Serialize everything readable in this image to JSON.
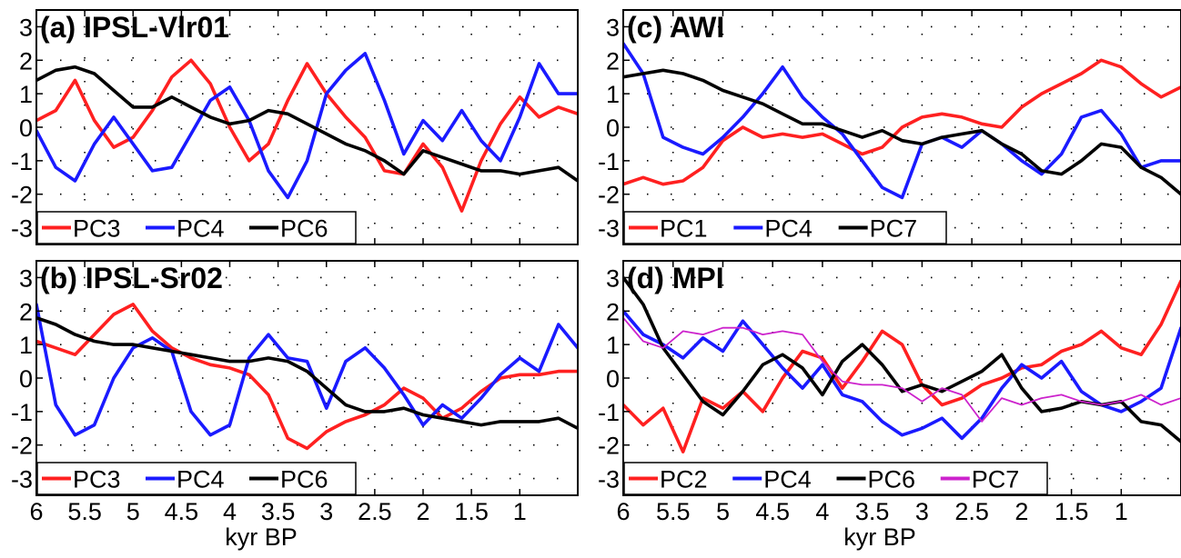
{
  "figure": {
    "xlabel": "kyr BP",
    "x_ticks": [
      "6",
      "5.5",
      "5",
      "4.5",
      "4",
      "3.5",
      "3",
      "2.5",
      "2",
      "1.5",
      "1"
    ],
    "y_ticks": [
      "3",
      "2",
      "1",
      "0",
      "-1",
      "-2",
      "-3"
    ]
  },
  "chart_data": [
    {
      "type": "line",
      "title": "(a) IPSL-Vlr01",
      "xlabel": "",
      "ylabel": "",
      "xlim": [
        6,
        0.4
      ],
      "ylim": [
        -3.5,
        3.5
      ],
      "x_reversed": true,
      "grid": true,
      "legend": "bottom-left",
      "x": [
        6.0,
        5.8,
        5.6,
        5.4,
        5.2,
        5.0,
        4.8,
        4.6,
        4.4,
        4.2,
        4.0,
        3.8,
        3.6,
        3.4,
        3.2,
        3.0,
        2.8,
        2.6,
        2.4,
        2.2,
        2.0,
        1.8,
        1.6,
        1.4,
        1.2,
        1.0,
        0.8,
        0.6,
        0.4
      ],
      "series": [
        {
          "name": "PC3",
          "color": "#ff2020",
          "values": [
            0.2,
            0.5,
            1.4,
            0.2,
            -0.6,
            -0.3,
            0.5,
            1.5,
            2.0,
            1.3,
            0.0,
            -1.0,
            -0.5,
            0.8,
            1.9,
            1.0,
            0.3,
            -0.3,
            -1.3,
            -1.4,
            -0.5,
            -1.2,
            -2.5,
            -1.0,
            0.1,
            0.9,
            0.3,
            0.6,
            0.4
          ]
        },
        {
          "name": "PC4",
          "color": "#1a1aff",
          "values": [
            -0.1,
            -1.2,
            -1.6,
            -0.5,
            0.3,
            -0.5,
            -1.3,
            -1.2,
            -0.2,
            0.8,
            1.2,
            0.2,
            -1.3,
            -2.1,
            -1.0,
            1.0,
            1.7,
            2.2,
            0.8,
            -0.8,
            0.2,
            -0.4,
            0.5,
            -0.4,
            -1.0,
            0.3,
            1.9,
            1.0,
            1.0
          ]
        },
        {
          "name": "PC6",
          "color": "#000000",
          "values": [
            1.4,
            1.7,
            1.8,
            1.6,
            1.1,
            0.6,
            0.6,
            0.9,
            0.6,
            0.3,
            0.1,
            0.2,
            0.5,
            0.4,
            0.1,
            -0.2,
            -0.5,
            -0.7,
            -1.0,
            -1.4,
            -0.7,
            -0.9,
            -1.1,
            -1.3,
            -1.3,
            -1.4,
            -1.3,
            -1.2,
            -1.6
          ]
        }
      ]
    },
    {
      "type": "line",
      "title": "(b) IPSL-Sr02",
      "xlabel": "kyr BP",
      "ylabel": "",
      "xlim": [
        6,
        0.4
      ],
      "ylim": [
        -3.5,
        3.5
      ],
      "x_reversed": true,
      "grid": true,
      "legend": "bottom-left",
      "x": [
        6.0,
        5.8,
        5.6,
        5.4,
        5.2,
        5.0,
        4.8,
        4.6,
        4.4,
        4.2,
        4.0,
        3.8,
        3.6,
        3.4,
        3.2,
        3.0,
        2.8,
        2.6,
        2.4,
        2.2,
        2.0,
        1.8,
        1.6,
        1.4,
        1.2,
        1.0,
        0.8,
        0.6,
        0.4
      ],
      "series": [
        {
          "name": "PC3",
          "color": "#ff2020",
          "values": [
            1.1,
            0.9,
            0.7,
            1.3,
            1.9,
            2.2,
            1.4,
            0.9,
            0.6,
            0.4,
            0.3,
            0.1,
            -0.5,
            -1.8,
            -2.1,
            -1.6,
            -1.3,
            -1.1,
            -0.8,
            -0.3,
            -0.6,
            -1.2,
            -0.9,
            -0.4,
            0.0,
            0.1,
            0.1,
            0.2,
            0.2
          ]
        },
        {
          "name": "PC4",
          "color": "#1a1aff",
          "values": [
            2.2,
            -0.8,
            -1.7,
            -1.4,
            0.0,
            0.9,
            1.2,
            0.8,
            -1.0,
            -1.7,
            -1.4,
            0.6,
            1.3,
            0.6,
            0.5,
            -0.9,
            0.5,
            0.9,
            0.3,
            -0.5,
            -1.4,
            -0.8,
            -1.2,
            -0.6,
            0.1,
            0.6,
            0.2,
            1.6,
            0.9
          ]
        },
        {
          "name": "PC6",
          "color": "#000000",
          "values": [
            1.8,
            1.6,
            1.3,
            1.1,
            1.0,
            1.0,
            0.9,
            0.8,
            0.7,
            0.6,
            0.5,
            0.5,
            0.6,
            0.5,
            0.2,
            -0.3,
            -0.8,
            -1.0,
            -1.0,
            -0.9,
            -1.1,
            -1.2,
            -1.3,
            -1.4,
            -1.3,
            -1.3,
            -1.3,
            -1.2,
            -1.5
          ]
        }
      ]
    },
    {
      "type": "line",
      "title": "(c) AWI",
      "xlabel": "",
      "ylabel": "",
      "xlim": [
        6,
        0.4
      ],
      "ylim": [
        -3.5,
        3.5
      ],
      "x_reversed": true,
      "grid": true,
      "legend": "bottom-left",
      "x": [
        6.0,
        5.8,
        5.6,
        5.4,
        5.2,
        5.0,
        4.8,
        4.6,
        4.4,
        4.2,
        4.0,
        3.8,
        3.6,
        3.4,
        3.2,
        3.0,
        2.8,
        2.6,
        2.4,
        2.2,
        2.0,
        1.8,
        1.6,
        1.4,
        1.2,
        1.0,
        0.8,
        0.6,
        0.4
      ],
      "series": [
        {
          "name": "PC1",
          "color": "#ff2020",
          "values": [
            -1.7,
            -1.5,
            -1.7,
            -1.6,
            -1.2,
            -0.4,
            0.0,
            -0.3,
            -0.2,
            -0.3,
            -0.2,
            -0.5,
            -0.8,
            -0.6,
            0.0,
            0.3,
            0.4,
            0.3,
            0.1,
            0.0,
            0.6,
            1.0,
            1.3,
            1.6,
            2.0,
            1.8,
            1.3,
            0.9,
            1.2
          ]
        },
        {
          "name": "PC4",
          "color": "#1a1aff",
          "values": [
            2.5,
            1.6,
            -0.3,
            -0.6,
            -0.8,
            -0.3,
            0.3,
            1.0,
            1.8,
            0.9,
            0.3,
            -0.2,
            -1.0,
            -1.8,
            -2.1,
            -0.5,
            -0.3,
            -0.6,
            -0.1,
            -0.5,
            -1.0,
            -1.4,
            -0.8,
            0.3,
            0.5,
            -0.2,
            -1.2,
            -1.0,
            -1.0
          ]
        },
        {
          "name": "PC7",
          "color": "#000000",
          "values": [
            1.5,
            1.6,
            1.7,
            1.6,
            1.4,
            1.1,
            0.9,
            0.7,
            0.4,
            0.1,
            0.1,
            -0.1,
            -0.3,
            -0.1,
            -0.4,
            -0.5,
            -0.3,
            -0.2,
            -0.1,
            -0.5,
            -0.8,
            -1.3,
            -1.4,
            -1.0,
            -0.5,
            -0.6,
            -1.2,
            -1.5,
            -2.0
          ]
        }
      ]
    },
    {
      "type": "line",
      "title": "(d) MPI",
      "xlabel": "kyr BP",
      "ylabel": "",
      "xlim": [
        6,
        0.4
      ],
      "ylim": [
        -3.5,
        3.5
      ],
      "x_reversed": true,
      "grid": true,
      "legend": "bottom-left",
      "x": [
        6.0,
        5.8,
        5.6,
        5.4,
        5.2,
        5.0,
        4.8,
        4.6,
        4.4,
        4.2,
        4.0,
        3.8,
        3.6,
        3.4,
        3.2,
        3.0,
        2.8,
        2.6,
        2.4,
        2.2,
        2.0,
        1.8,
        1.6,
        1.4,
        1.2,
        1.0,
        0.8,
        0.6,
        0.4
      ],
      "series": [
        {
          "name": "PC2",
          "color": "#ff2020",
          "values": [
            -0.8,
            -1.4,
            -0.9,
            -2.2,
            -0.6,
            -0.9,
            -0.4,
            -1.0,
            0.0,
            0.8,
            0.6,
            -0.3,
            0.5,
            1.4,
            1.0,
            -0.2,
            -0.8,
            -0.6,
            -0.2,
            0.0,
            0.3,
            0.4,
            0.8,
            1.0,
            1.4,
            0.9,
            0.7,
            1.6,
            2.9
          ]
        },
        {
          "name": "PC4",
          "color": "#1a1aff",
          "values": [
            2.0,
            1.3,
            1.0,
            0.6,
            1.2,
            0.8,
            1.7,
            1.0,
            0.3,
            -0.3,
            0.4,
            -0.5,
            -0.7,
            -1.3,
            -1.7,
            -1.5,
            -1.2,
            -1.8,
            -1.2,
            -0.3,
            0.4,
            0.0,
            0.5,
            -0.4,
            -0.8,
            -1.0,
            -0.7,
            -0.3,
            1.5
          ]
        },
        {
          "name": "PC6",
          "color": "#000000",
          "values": [
            3.0,
            2.2,
            0.9,
            0.1,
            -0.7,
            -1.1,
            -0.4,
            0.4,
            0.7,
            0.3,
            -0.5,
            0.5,
            1.0,
            0.4,
            -0.4,
            -0.2,
            -0.4,
            -0.1,
            0.2,
            0.7,
            -0.3,
            -1.0,
            -0.9,
            -0.7,
            -0.8,
            -0.7,
            -1.3,
            -1.4,
            -1.9
          ]
        },
        {
          "name": "PC7",
          "color": "#cc22cc",
          "values": [
            1.8,
            1.1,
            0.9,
            1.4,
            1.3,
            1.5,
            1.5,
            1.3,
            1.4,
            1.3,
            0.5,
            -0.1,
            -0.2,
            -0.2,
            -0.3,
            -0.7,
            -0.3,
            -0.5,
            -1.3,
            -0.6,
            -0.8,
            -0.6,
            -0.5,
            -0.7,
            -0.8,
            -0.7,
            -0.5,
            -0.8,
            -0.6
          ]
        }
      ]
    }
  ]
}
